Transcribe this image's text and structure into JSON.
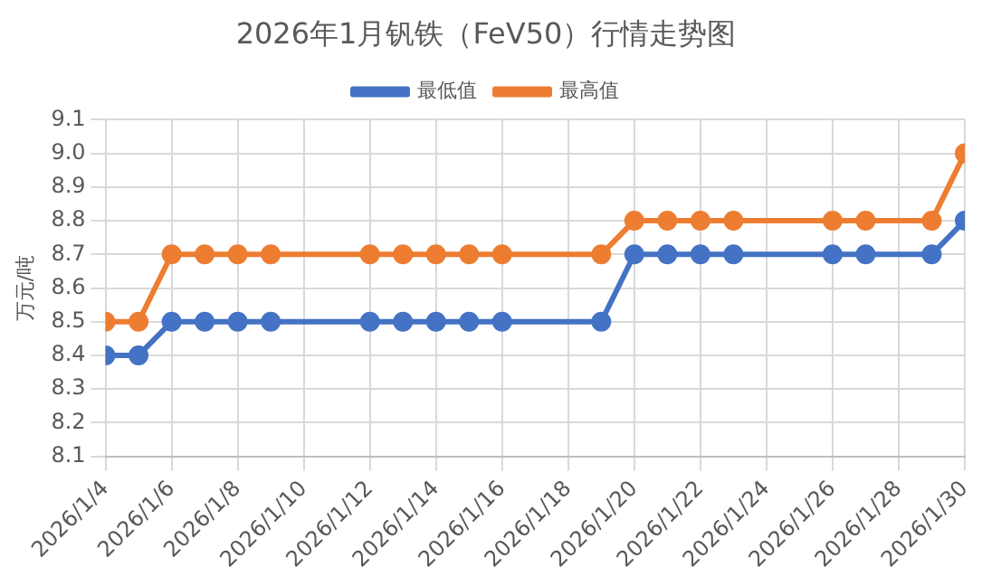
{
  "chart_data": {
    "type": "line",
    "title": "2026年1月钒铁（FeV50）行情走势图",
    "ylabel": "万元/吨",
    "x": [
      "2026-01-04",
      "2026-01-05",
      "2026-01-06",
      "2026-01-07",
      "2026-01-08",
      "2026-01-09",
      "2026-01-12",
      "2026-01-13",
      "2026-01-14",
      "2026-01-15",
      "2026-01-16",
      "2026-01-19",
      "2026-01-20",
      "2026-01-21",
      "2026-01-22",
      "2026-01-23",
      "2026-01-26",
      "2026-01-27",
      "2026-01-29",
      "2026-01-30"
    ],
    "series": [
      {
        "name": "最低值",
        "color": "#4472c4",
        "values": [
          8.4,
          8.4,
          8.5,
          8.5,
          8.5,
          8.5,
          8.5,
          8.5,
          8.5,
          8.5,
          8.5,
          8.5,
          8.7,
          8.7,
          8.7,
          8.7,
          8.7,
          8.7,
          8.7,
          8.8
        ]
      },
      {
        "name": "最高值",
        "color": "#ed7d31",
        "values": [
          8.5,
          8.5,
          8.7,
          8.7,
          8.7,
          8.7,
          8.7,
          8.7,
          8.7,
          8.7,
          8.7,
          8.7,
          8.8,
          8.8,
          8.8,
          8.8,
          8.8,
          8.8,
          8.8,
          9.0
        ]
      }
    ],
    "xlim": [
      "2026-01-04",
      "2026-01-30"
    ],
    "xticks": [
      {
        "value": "2026-01-04",
        "label": "2026/1/4"
      },
      {
        "value": "2026-01-06",
        "label": "2026/1/6"
      },
      {
        "value": "2026-01-08",
        "label": "2026/1/8"
      },
      {
        "value": "2026-01-10",
        "label": "2026/1/10"
      },
      {
        "value": "2026-01-12",
        "label": "2026/1/12"
      },
      {
        "value": "2026-01-14",
        "label": "2026/1/14"
      },
      {
        "value": "2026-01-16",
        "label": "2026/1/16"
      },
      {
        "value": "2026-01-18",
        "label": "2026/1/18"
      },
      {
        "value": "2026-01-20",
        "label": "2026/1/20"
      },
      {
        "value": "2026-01-22",
        "label": "2026/1/22"
      },
      {
        "value": "2026-01-24",
        "label": "2026/1/24"
      },
      {
        "value": "2026-01-26",
        "label": "2026/1/26"
      },
      {
        "value": "2026-01-28",
        "label": "2026/1/28"
      },
      {
        "value": "2026-01-30",
        "label": "2026/1/30"
      }
    ],
    "ylim": [
      8.1,
      9.1
    ],
    "yticks": [
      {
        "value": 8.1,
        "label": "8.1"
      },
      {
        "value": 8.2,
        "label": "8.2"
      },
      {
        "value": 8.3,
        "label": "8.3"
      },
      {
        "value": 8.4,
        "label": "8.4"
      },
      {
        "value": 8.5,
        "label": "8.5"
      },
      {
        "value": 8.6,
        "label": "8.6"
      },
      {
        "value": 8.7,
        "label": "8.7"
      },
      {
        "value": 8.8,
        "label": "8.8"
      },
      {
        "value": 8.9,
        "label": "8.9"
      },
      {
        "value": 9.0,
        "label": "9.0"
      },
      {
        "value": 9.1,
        "label": "9.1"
      }
    ],
    "grid": true,
    "legend": "top",
    "marker": "circle",
    "line_style": "solid"
  }
}
